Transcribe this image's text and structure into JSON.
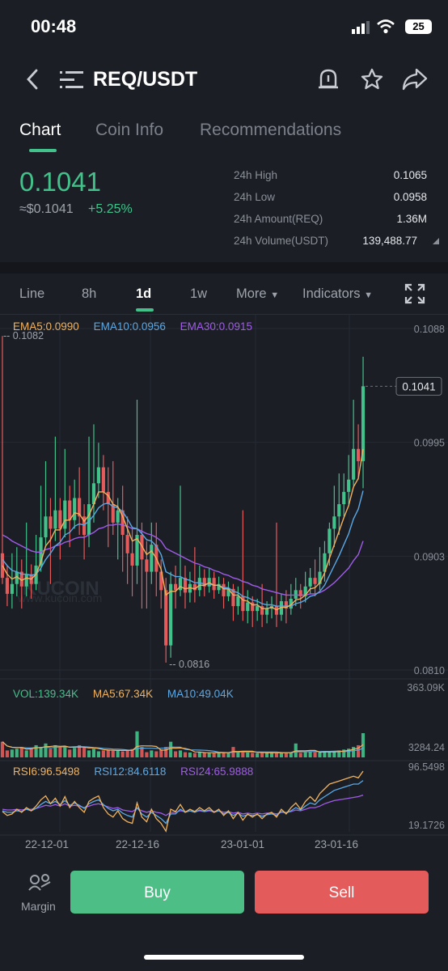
{
  "status": {
    "time": "00:48",
    "battery": "25"
  },
  "header": {
    "title": "REQ/USDT",
    "icons": [
      "back-icon",
      "menu-icon",
      "price-alert-icon",
      "star-icon",
      "share-icon"
    ]
  },
  "tabs": [
    "Chart",
    "Coin Info",
    "Recommendations"
  ],
  "ticker": {
    "price": "0.1041",
    "usd_price": "≈$0.1041",
    "change": "+5.25%",
    "stats": [
      {
        "label": "24h High",
        "value": "0.1065"
      },
      {
        "label": "24h Low",
        "value": "0.0958"
      },
      {
        "label": "24h Amount(REQ)",
        "value": "1.36M"
      },
      {
        "label": "24h Volume(USDT)",
        "value": "139,488.77"
      }
    ]
  },
  "ranges": [
    "Line",
    "8h",
    "1d",
    "1w",
    "More",
    "Indicators"
  ],
  "active_range": "1d",
  "colors": {
    "up": "#42c28a",
    "down": "#e45b5b",
    "ema5": "#f2b25c",
    "ema10": "#5aa9e6",
    "ema30": "#a05ce8",
    "bg": "#1b1e25"
  },
  "chart": {
    "ema": {
      "ema5": "EMA5:0.0990",
      "ema10": "EMA10:0.0956",
      "ema30": "EMA30:0.0915"
    },
    "price_axis": [
      "0.1088",
      "0.0995",
      "0.0903",
      "0.0810"
    ],
    "current_price_tag": "0.1041",
    "high_marker": "0.1082",
    "low_marker": "0.0816",
    "watermark": "KUCOIN",
    "watermark_url": "www.kucoin.com",
    "vol": {
      "vol": "VOL:139.34K",
      "ma5": "MA5:67.34K",
      "ma10": "MA10:49.04K",
      "axis_top": "363.09K",
      "axis_bottom": "3284.24"
    },
    "rsi": {
      "rsi6": "RSI6:96.5498",
      "rsi12": "RSI12:84.6118",
      "rsi24": "RSI24:65.9888",
      "axis_top": "96.5498",
      "axis_bottom": "19.1726"
    },
    "dates": [
      "22-12-01",
      "22-12-16",
      "23-01-01",
      "23-01-16"
    ]
  },
  "chart_data": {
    "type": "candlestick",
    "price_range": [
      0.081,
      0.1088
    ],
    "candles": [
      {
        "o": 0.0905,
        "c": 0.0885,
        "h": 0.1082,
        "l": 0.088
      },
      {
        "o": 0.0885,
        "c": 0.0872,
        "h": 0.0895,
        "l": 0.0862
      },
      {
        "o": 0.0872,
        "c": 0.088,
        "h": 0.0905,
        "l": 0.086
      },
      {
        "o": 0.088,
        "c": 0.089,
        "h": 0.091,
        "l": 0.087
      },
      {
        "o": 0.089,
        "c": 0.0878,
        "h": 0.09,
        "l": 0.086
      },
      {
        "o": 0.0878,
        "c": 0.0888,
        "h": 0.093,
        "l": 0.087
      },
      {
        "o": 0.0888,
        "c": 0.088,
        "h": 0.0896,
        "l": 0.0868
      },
      {
        "o": 0.088,
        "c": 0.0895,
        "h": 0.092,
        "l": 0.0875
      },
      {
        "o": 0.0895,
        "c": 0.0918,
        "h": 0.096,
        "l": 0.089
      },
      {
        "o": 0.0918,
        "c": 0.0935,
        "h": 0.098,
        "l": 0.091
      },
      {
        "o": 0.0935,
        "c": 0.0925,
        "h": 0.095,
        "l": 0.088
      },
      {
        "o": 0.0925,
        "c": 0.094,
        "h": 0.1,
        "l": 0.0915
      },
      {
        "o": 0.094,
        "c": 0.0925,
        "h": 0.095,
        "l": 0.09
      },
      {
        "o": 0.0925,
        "c": 0.0948,
        "h": 0.099,
        "l": 0.0918
      },
      {
        "o": 0.0948,
        "c": 0.0932,
        "h": 0.096,
        "l": 0.091
      },
      {
        "o": 0.0932,
        "c": 0.095,
        "h": 0.0965,
        "l": 0.0925
      },
      {
        "o": 0.095,
        "c": 0.0935,
        "h": 0.0975,
        "l": 0.092
      },
      {
        "o": 0.0935,
        "c": 0.092,
        "h": 0.0945,
        "l": 0.09
      },
      {
        "o": 0.092,
        "c": 0.0945,
        "h": 0.1,
        "l": 0.091
      },
      {
        "o": 0.0945,
        "c": 0.0962,
        "h": 0.101,
        "l": 0.093
      },
      {
        "o": 0.0962,
        "c": 0.0975,
        "h": 0.0995,
        "l": 0.095
      },
      {
        "o": 0.0975,
        "c": 0.0955,
        "h": 0.0985,
        "l": 0.094
      },
      {
        "o": 0.0955,
        "c": 0.0945,
        "h": 0.0975,
        "l": 0.091
      },
      {
        "o": 0.0945,
        "c": 0.093,
        "h": 0.098,
        "l": 0.092
      },
      {
        "o": 0.093,
        "c": 0.094,
        "h": 0.095,
        "l": 0.09
      },
      {
        "o": 0.094,
        "c": 0.092,
        "h": 0.096,
        "l": 0.089
      },
      {
        "o": 0.092,
        "c": 0.0905,
        "h": 0.0935,
        "l": 0.088
      },
      {
        "o": 0.0905,
        "c": 0.0895,
        "h": 0.0925,
        "l": 0.087
      },
      {
        "o": 0.0895,
        "c": 0.092,
        "h": 0.103,
        "l": 0.088
      },
      {
        "o": 0.092,
        "c": 0.09,
        "h": 0.093,
        "l": 0.086
      },
      {
        "o": 0.09,
        "c": 0.089,
        "h": 0.0915,
        "l": 0.086
      },
      {
        "o": 0.089,
        "c": 0.0912,
        "h": 0.093,
        "l": 0.088
      },
      {
        "o": 0.0912,
        "c": 0.089,
        "h": 0.093,
        "l": 0.087
      },
      {
        "o": 0.089,
        "c": 0.0875,
        "h": 0.09,
        "l": 0.086
      },
      {
        "o": 0.0875,
        "c": 0.083,
        "h": 0.0885,
        "l": 0.0816
      },
      {
        "o": 0.083,
        "c": 0.088,
        "h": 0.089,
        "l": 0.082
      },
      {
        "o": 0.088,
        "c": 0.0875,
        "h": 0.0895,
        "l": 0.086
      },
      {
        "o": 0.0875,
        "c": 0.0885,
        "h": 0.096,
        "l": 0.087
      },
      {
        "o": 0.0885,
        "c": 0.0873,
        "h": 0.0895,
        "l": 0.086
      },
      {
        "o": 0.0873,
        "c": 0.088,
        "h": 0.089,
        "l": 0.0865
      },
      {
        "o": 0.088,
        "c": 0.0875,
        "h": 0.091,
        "l": 0.0865
      },
      {
        "o": 0.0875,
        "c": 0.0885,
        "h": 0.0895,
        "l": 0.087
      },
      {
        "o": 0.0885,
        "c": 0.0878,
        "h": 0.0892,
        "l": 0.087
      },
      {
        "o": 0.0878,
        "c": 0.0885,
        "h": 0.0893,
        "l": 0.0873
      },
      {
        "o": 0.0885,
        "c": 0.0875,
        "h": 0.089,
        "l": 0.0868
      },
      {
        "o": 0.0875,
        "c": 0.088,
        "h": 0.0886,
        "l": 0.0872
      },
      {
        "o": 0.088,
        "c": 0.087,
        "h": 0.0885,
        "l": 0.086
      },
      {
        "o": 0.087,
        "c": 0.0876,
        "h": 0.0882,
        "l": 0.0866
      },
      {
        "o": 0.0876,
        "c": 0.0862,
        "h": 0.088,
        "l": 0.085
      },
      {
        "o": 0.0862,
        "c": 0.087,
        "h": 0.0878,
        "l": 0.0855
      },
      {
        "o": 0.087,
        "c": 0.0858,
        "h": 0.094,
        "l": 0.085
      },
      {
        "o": 0.0858,
        "c": 0.0865,
        "h": 0.0875,
        "l": 0.0848
      },
      {
        "o": 0.0865,
        "c": 0.0858,
        "h": 0.087,
        "l": 0.0845
      },
      {
        "o": 0.0858,
        "c": 0.0862,
        "h": 0.0868,
        "l": 0.085
      },
      {
        "o": 0.0862,
        "c": 0.0855,
        "h": 0.088,
        "l": 0.0845
      },
      {
        "o": 0.0855,
        "c": 0.086,
        "h": 0.0866,
        "l": 0.0848
      },
      {
        "o": 0.086,
        "c": 0.0862,
        "h": 0.087,
        "l": 0.0852
      },
      {
        "o": 0.0862,
        "c": 0.0855,
        "h": 0.093,
        "l": 0.0845
      },
      {
        "o": 0.0855,
        "c": 0.0866,
        "h": 0.0872,
        "l": 0.085
      },
      {
        "o": 0.0866,
        "c": 0.086,
        "h": 0.0875,
        "l": 0.0848
      },
      {
        "o": 0.086,
        "c": 0.0868,
        "h": 0.088,
        "l": 0.0855
      },
      {
        "o": 0.0868,
        "c": 0.0875,
        "h": 0.0885,
        "l": 0.0862
      },
      {
        "o": 0.0875,
        "c": 0.087,
        "h": 0.088,
        "l": 0.086
      },
      {
        "o": 0.087,
        "c": 0.0878,
        "h": 0.089,
        "l": 0.0865
      },
      {
        "o": 0.0878,
        "c": 0.0885,
        "h": 0.0893,
        "l": 0.0872
      },
      {
        "o": 0.0885,
        "c": 0.088,
        "h": 0.09,
        "l": 0.087
      },
      {
        "o": 0.088,
        "c": 0.089,
        "h": 0.091,
        "l": 0.0875
      },
      {
        "o": 0.089,
        "c": 0.0905,
        "h": 0.0915,
        "l": 0.0882
      },
      {
        "o": 0.0905,
        "c": 0.0925,
        "h": 0.093,
        "l": 0.0895
      },
      {
        "o": 0.0925,
        "c": 0.0935,
        "h": 0.096,
        "l": 0.091
      },
      {
        "o": 0.0935,
        "c": 0.0945,
        "h": 0.097,
        "l": 0.092
      },
      {
        "o": 0.0945,
        "c": 0.0955,
        "h": 0.097,
        "l": 0.0935
      },
      {
        "o": 0.0955,
        "c": 0.0965,
        "h": 0.0985,
        "l": 0.0945
      },
      {
        "o": 0.0965,
        "c": 0.099,
        "h": 0.103,
        "l": 0.096
      },
      {
        "o": 0.099,
        "c": 0.098,
        "h": 0.101,
        "l": 0.0965
      },
      {
        "o": 0.098,
        "c": 0.1041,
        "h": 0.1065,
        "l": 0.0958
      }
    ],
    "volume_range": [
      0,
      363090
    ],
    "volumes": [
      90000,
      40000,
      45000,
      50000,
      60000,
      40000,
      55000,
      70000,
      60000,
      80000,
      50000,
      70000,
      60000,
      65000,
      45000,
      55000,
      70000,
      60000,
      40000,
      50000,
      35000,
      40000,
      45000,
      38000,
      42000,
      35000,
      40000,
      48000,
      150000,
      60000,
      30000,
      40000,
      35000,
      45000,
      60000,
      90000,
      35000,
      40000,
      30000,
      28000,
      25000,
      30000,
      27000,
      25000,
      28000,
      30000,
      26000,
      25000,
      60000,
      30000,
      35000,
      28000,
      26000,
      24000,
      28000,
      26000,
      30000,
      25000,
      28000,
      24000,
      30000,
      80000,
      26000,
      30000,
      35000,
      30000,
      28000,
      32000,
      30000,
      35000,
      40000,
      45000,
      50000,
      60000,
      70000,
      139340
    ],
    "ema5": [
      0.0895,
      0.0888,
      0.0884,
      0.0886,
      0.0883,
      0.0885,
      0.0884,
      0.0888,
      0.0898,
      0.0911,
      0.0916,
      0.0924,
      0.0924,
      0.0932,
      0.0932,
      0.0938,
      0.0937,
      0.0931,
      0.0936,
      0.0945,
      0.0955,
      0.0955,
      0.0952,
      0.0945,
      0.0943,
      0.0935,
      0.0925,
      0.0915,
      0.0917,
      0.0911,
      0.0904,
      0.0907,
      0.0901,
      0.0892,
      0.0871,
      0.0874,
      0.0874,
      0.0878,
      0.0876,
      0.0877,
      0.0876,
      0.0879,
      0.0879,
      0.0881,
      0.0879,
      0.0879,
      0.0876,
      0.0876,
      0.0871,
      0.0871,
      0.0867,
      0.0866,
      0.0863,
      0.0863,
      0.086,
      0.086,
      0.0861,
      0.0859,
      0.0861,
      0.0861,
      0.0863,
      0.0867,
      0.0868,
      0.0871,
      0.0876,
      0.0877,
      0.0881,
      0.0889,
      0.0901,
      0.0912,
      0.0923,
      0.0934,
      0.0944,
      0.0959,
      0.0966,
      0.099
    ],
    "ema10": [
      0.09,
      0.0895,
      0.0891,
      0.089,
      0.0888,
      0.0888,
      0.0887,
      0.0888,
      0.0893,
      0.09,
      0.0905,
      0.0911,
      0.0914,
      0.092,
      0.0922,
      0.0927,
      0.0929,
      0.0928,
      0.0931,
      0.0936,
      0.0942,
      0.0945,
      0.0946,
      0.0943,
      0.0942,
      0.0939,
      0.0933,
      0.0926,
      0.0925,
      0.0921,
      0.0916,
      0.0915,
      0.0911,
      0.0904,
      0.089,
      0.0888,
      0.0886,
      0.0886,
      0.0884,
      0.0883,
      0.0881,
      0.0881,
      0.088,
      0.088,
      0.0879,
      0.0879,
      0.0877,
      0.0877,
      0.0874,
      0.0873,
      0.087,
      0.0869,
      0.0867,
      0.0866,
      0.0864,
      0.0863,
      0.0863,
      0.0862,
      0.0862,
      0.0862,
      0.0862,
      0.0864,
      0.0865,
      0.0867,
      0.087,
      0.0871,
      0.0874,
      0.0879,
      0.0887,
      0.0895,
      0.0903,
      0.0912,
      0.0921,
      0.0933,
      0.0941,
      0.0956
    ],
    "ema30": [
      0.092,
      0.0918,
      0.0915,
      0.0913,
      0.0911,
      0.0909,
      0.0907,
      0.0906,
      0.0906,
      0.0908,
      0.0909,
      0.0911,
      0.0912,
      0.0914,
      0.0915,
      0.0917,
      0.0918,
      0.0918,
      0.092,
      0.0922,
      0.0925,
      0.0926,
      0.0928,
      0.0928,
      0.0929,
      0.0928,
      0.0927,
      0.0925,
      0.0925,
      0.0923,
      0.0921,
      0.092,
      0.0918,
      0.0915,
      0.0909,
      0.0907,
      0.0905,
      0.0903,
      0.0901,
      0.0899,
      0.0897,
      0.0896,
      0.0894,
      0.0893,
      0.0891,
      0.089,
      0.0888,
      0.0887,
      0.0885,
      0.0884,
      0.0882,
      0.0881,
      0.0879,
      0.0878,
      0.0876,
      0.0875,
      0.0874,
      0.0873,
      0.0872,
      0.0871,
      0.0871,
      0.0871,
      0.0871,
      0.0871,
      0.0872,
      0.0872,
      0.0873,
      0.0875,
      0.0878,
      0.0881,
      0.0885,
      0.0889,
      0.0893,
      0.0899,
      0.0904,
      0.0915
    ],
    "rsi_range": [
      19.1726,
      96.5498
    ],
    "rsi6": [
      45,
      40,
      42,
      48,
      44,
      50,
      46,
      52,
      60,
      65,
      55,
      62,
      52,
      64,
      50,
      58,
      50,
      44,
      58,
      62,
      65,
      50,
      42,
      38,
      46,
      36,
      32,
      30,
      56,
      38,
      32,
      48,
      36,
      30,
      20,
      48,
      45,
      54,
      44,
      48,
      45,
      50,
      46,
      50,
      44,
      48,
      40,
      46,
      36,
      44,
      34,
      42,
      38,
      42,
      36,
      42,
      44,
      38,
      48,
      42,
      50,
      56,
      48,
      58,
      64,
      58,
      68,
      74,
      80,
      82,
      84,
      86,
      88,
      90,
      88,
      96.5
    ],
    "rsi12": [
      46,
      44,
      44,
      46,
      45,
      48,
      46,
      49,
      54,
      58,
      55,
      58,
      54,
      59,
      53,
      56,
      53,
      49,
      55,
      58,
      60,
      54,
      49,
      46,
      48,
      43,
      40,
      38,
      50,
      42,
      38,
      44,
      40,
      36,
      30,
      42,
      42,
      48,
      44,
      46,
      44,
      47,
      45,
      47,
      44,
      46,
      42,
      44,
      40,
      43,
      39,
      41,
      40,
      41,
      39,
      41,
      42,
      40,
      45,
      43,
      46,
      50,
      47,
      52,
      56,
      54,
      60,
      64,
      68,
      72,
      74,
      76,
      78,
      80,
      80,
      84.6
    ],
    "rsi24": [
      48,
      47,
      47,
      48,
      47,
      48,
      48,
      49,
      51,
      53,
      52,
      54,
      52,
      55,
      52,
      53,
      52,
      50,
      52,
      54,
      55,
      53,
      51,
      49,
      50,
      47,
      46,
      45,
      49,
      46,
      44,
      46,
      44,
      43,
      40,
      44,
      44,
      46,
      45,
      46,
      45,
      46,
      45,
      46,
      45,
      46,
      44,
      45,
      43,
      44,
      42,
      43,
      42,
      43,
      42,
      43,
      43,
      42,
      44,
      44,
      45,
      47,
      46,
      48,
      50,
      50,
      52,
      55,
      57,
      59,
      60,
      61,
      62,
      63,
      64,
      66.0
    ]
  }
}
